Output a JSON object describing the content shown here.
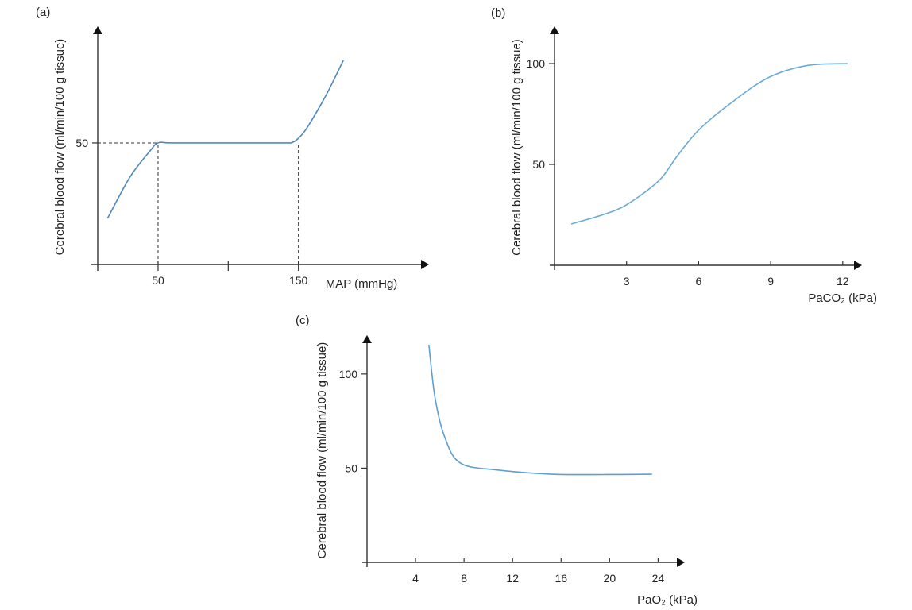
{
  "chart_data": [
    {
      "panel_label": "(a)",
      "type": "line",
      "ylabel": "Cerebral blood flow (ml/min/100 g tissue)",
      "xlabel": "MAP (mmHg)",
      "xlim": [
        7,
        243
      ],
      "ylim": [
        0,
        98
      ],
      "xticks": [
        {
          "v": 50,
          "label": "50"
        },
        {
          "v": 100,
          "label": ""
        },
        {
          "v": 150,
          "label": "150"
        }
      ],
      "yticks": [
        {
          "v": 50,
          "label": "50"
        }
      ],
      "reference_lines": [
        {
          "type": "h",
          "y": 50,
          "x_to": 50
        },
        {
          "type": "v",
          "x": 50,
          "y_to": 50
        },
        {
          "type": "v",
          "x": 150,
          "y_to": 50
        }
      ],
      "series": [
        {
          "color": "#4f87bf",
          "points": [
            [
              14,
              19
            ],
            [
              30,
              36
            ],
            [
              44,
              46.5
            ],
            [
              50,
              50
            ],
            [
              60,
              50
            ],
            [
              100,
              50
            ],
            [
              140,
              50
            ],
            [
              146,
              50.3
            ],
            [
              151,
              52.5
            ],
            [
              157,
              57
            ],
            [
              170,
              70
            ],
            [
              182,
              84
            ]
          ]
        }
      ],
      "grid": false
    },
    {
      "panel_label": "(b)",
      "type": "line",
      "ylabel": "Cerebral blood flow (ml/min/100 g tissue)",
      "xlabel": "PaCO₂ (kPa)",
      "xlim": [
        0,
        12.8
      ],
      "ylim": [
        0,
        118.5
      ],
      "xticks": [
        {
          "v": 3,
          "label": "3"
        },
        {
          "v": 6,
          "label": "6"
        },
        {
          "v": 9,
          "label": "9"
        },
        {
          "v": 12,
          "label": "12"
        }
      ],
      "yticks": [
        {
          "v": 50,
          "label": "50"
        },
        {
          "v": 100,
          "label": "100"
        }
      ],
      "series": [
        {
          "color": "#6aaad8",
          "points": [
            [
              0.7,
              20.5
            ],
            [
              2,
              25
            ],
            [
              3,
              30
            ],
            [
              4.35,
              42
            ],
            [
              5.1,
              54
            ],
            [
              6,
              67
            ],
            [
              7.3,
              80
            ],
            [
              8.9,
              93
            ],
            [
              10.5,
              99
            ],
            [
              12.2,
              100
            ]
          ]
        }
      ],
      "grid": false
    },
    {
      "panel_label": "(c)",
      "type": "line",
      "ylabel": "Cerebral blood flow (ml/min/100 g tissue)",
      "xlabel": "PaO₂ (kPa)",
      "xlim": [
        0,
        26.2
      ],
      "ylim": [
        0,
        120.6
      ],
      "xticks": [
        {
          "v": 4,
          "label": "4"
        },
        {
          "v": 8,
          "label": "8"
        },
        {
          "v": 12,
          "label": "12"
        },
        {
          "v": 16,
          "label": "16"
        },
        {
          "v": 20,
          "label": "20"
        },
        {
          "v": 24,
          "label": "24"
        }
      ],
      "yticks": [
        {
          "v": 50,
          "label": "50"
        },
        {
          "v": 100,
          "label": "100"
        }
      ],
      "series": [
        {
          "color": "#5e9fd2",
          "points": [
            [
              5.1,
              115.5
            ],
            [
              5.6,
              87.7
            ],
            [
              6.4,
              66.6
            ],
            [
              7.7,
              52.7
            ],
            [
              10.8,
              49
            ],
            [
              15.2,
              46.8
            ],
            [
              19.5,
              46.6
            ],
            [
              23.5,
              46.8
            ]
          ]
        }
      ],
      "grid": false
    }
  ]
}
